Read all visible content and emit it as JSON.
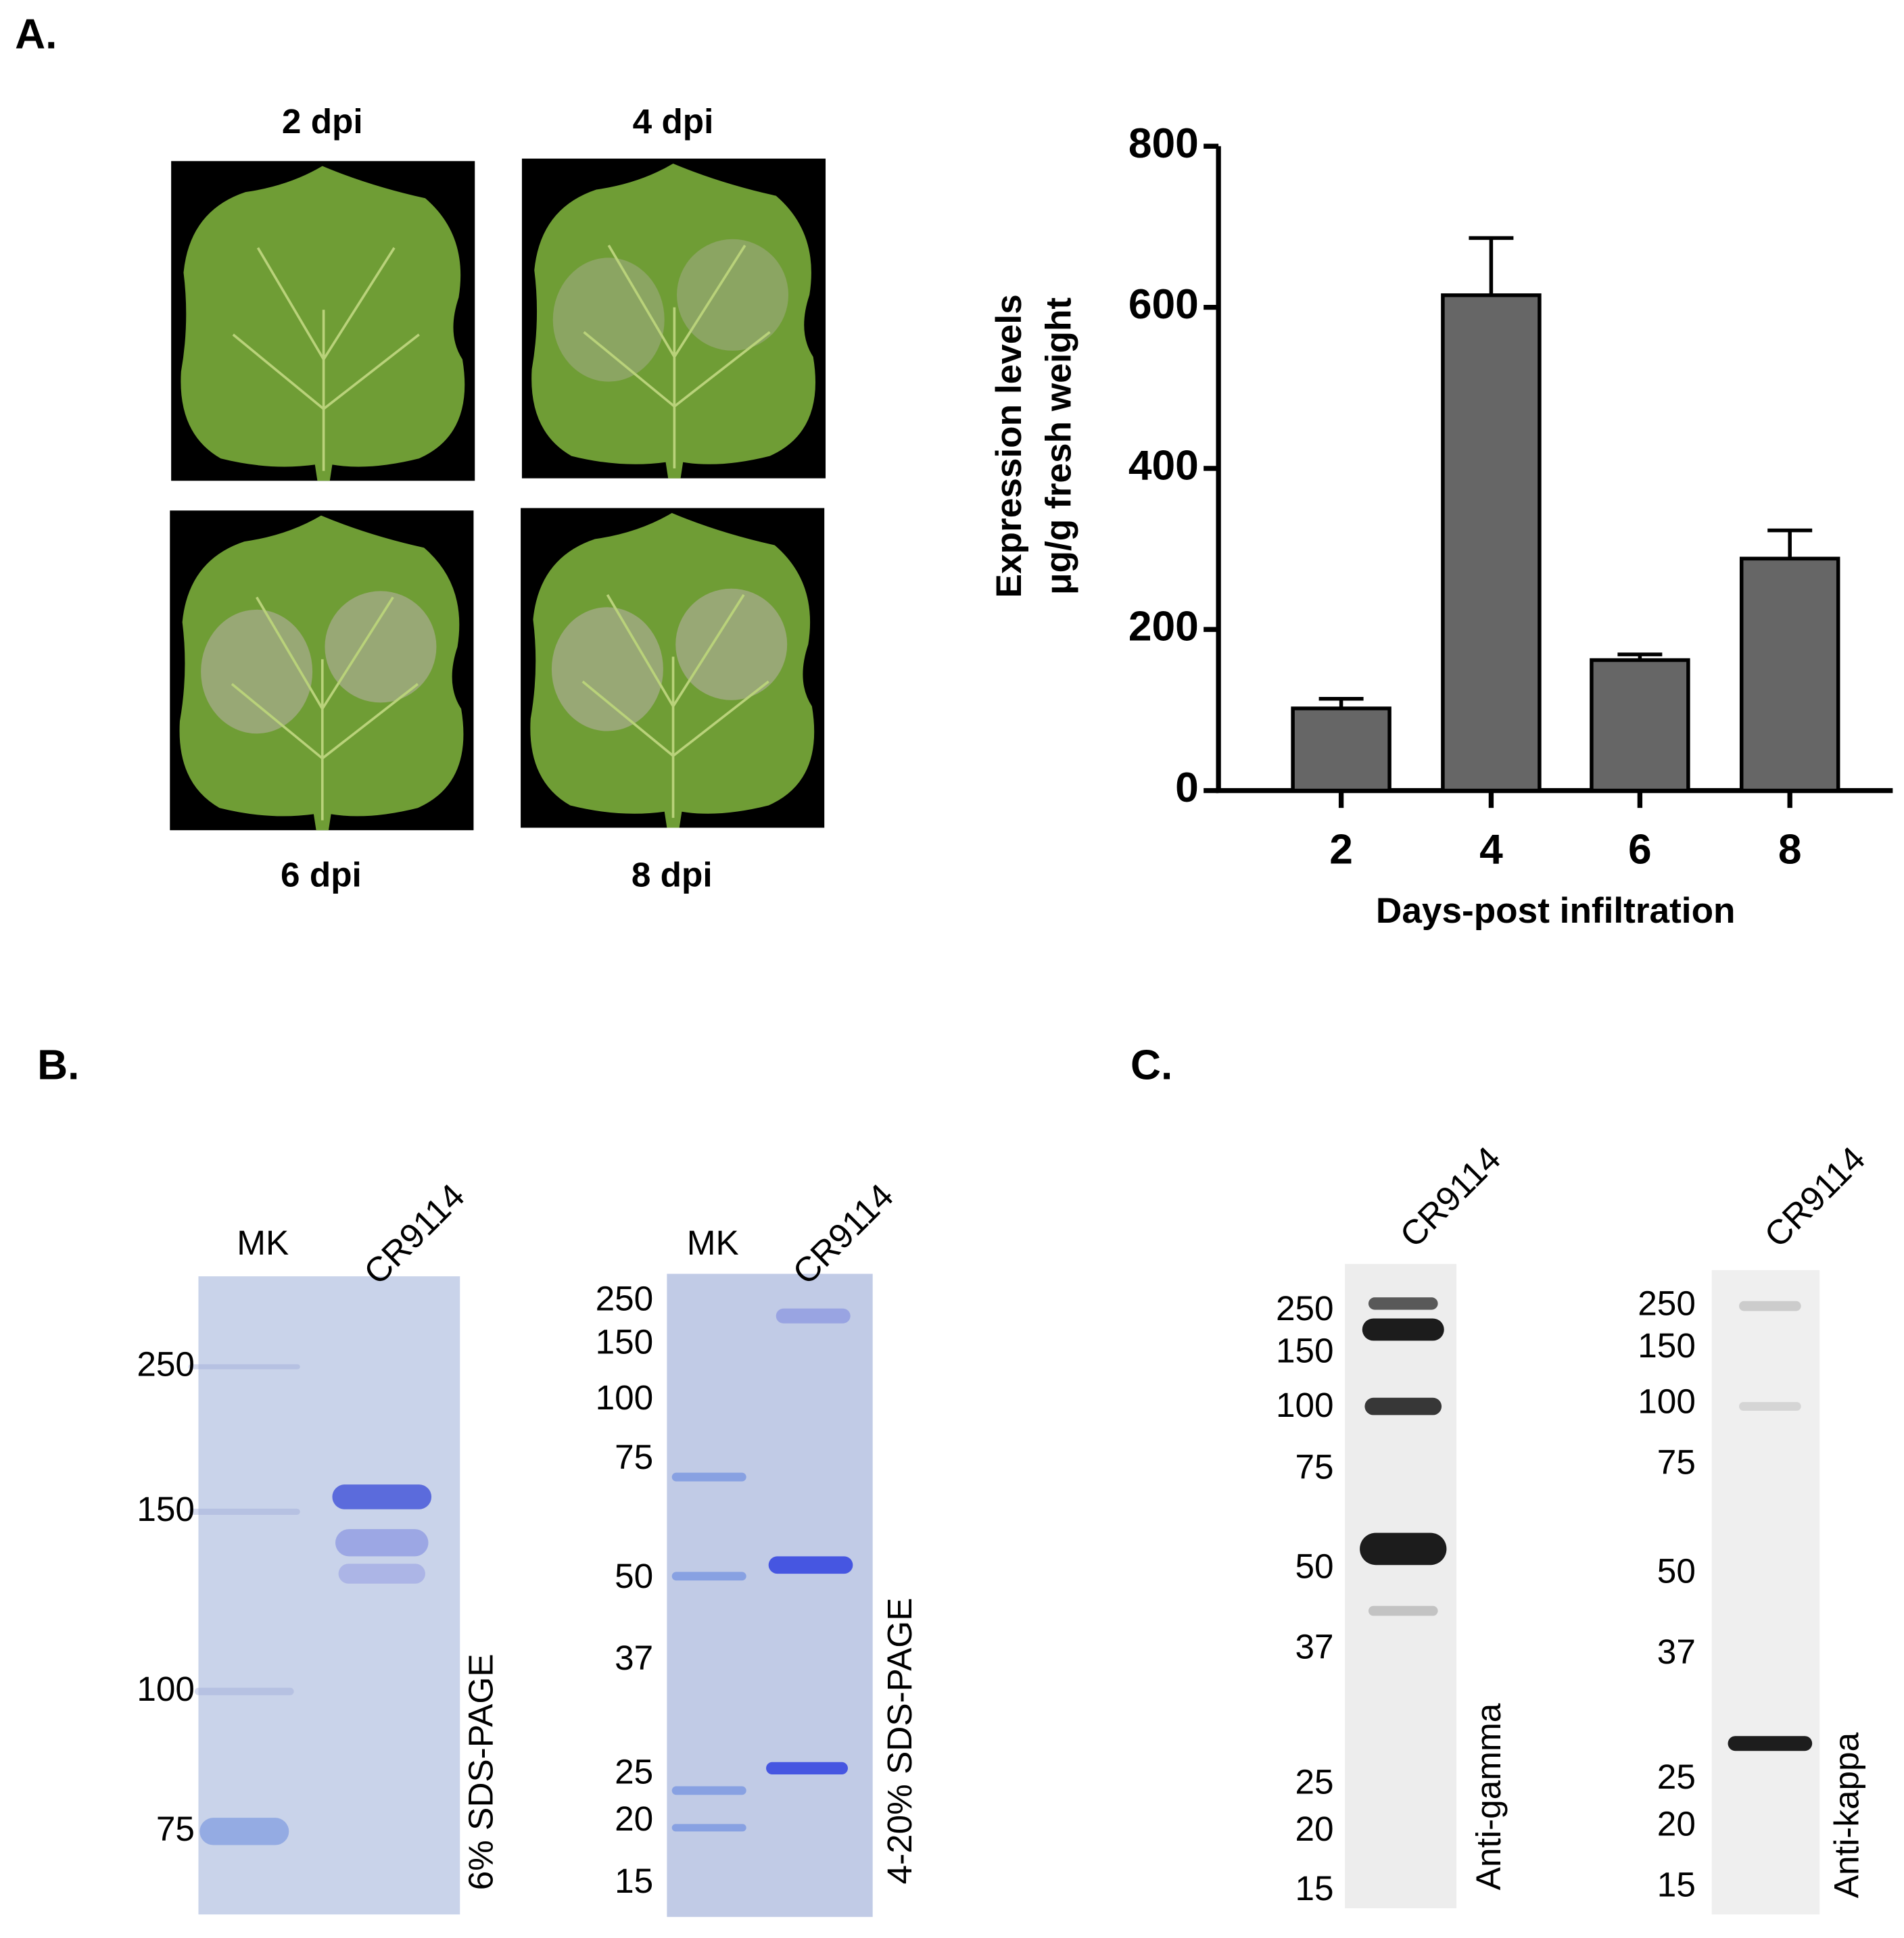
{
  "chart_data": {
    "type": "bar",
    "xlabel": "Days-post infiltration",
    "ylabel": [
      "Expression levels",
      "μg/g fresh weight"
    ],
    "categories": [
      "2",
      "4",
      "6",
      "8"
    ],
    "values": [
      102,
      615,
      162,
      288
    ],
    "errors": [
      12,
      71,
      7,
      35
    ],
    "color": "#666666",
    "ylim": [
      0,
      800
    ],
    "yticks": [
      0,
      200,
      400,
      600,
      800
    ]
  },
  "panel_labels": [
    "A.",
    "B.",
    "C."
  ],
  "leaves": [
    "2 dpi",
    "4 dpi",
    "6 dpi",
    "8 dpi"
  ],
  "gels": [
    {
      "lanes": [
        "MK",
        "CR9114"
      ],
      "caption": "6% SDS-PAGE",
      "markers": [
        "250",
        "150",
        "100",
        "75"
      ]
    },
    {
      "lanes": [
        "MK",
        "CR9114"
      ],
      "caption": "4-20% SDS-PAGE",
      "markers": [
        "250",
        "150",
        "100",
        "75",
        "50",
        "37",
        "25",
        "20",
        "15"
      ]
    },
    {
      "lanes": [
        "CR9114"
      ],
      "caption": "Anti-gamma",
      "markers": [
        "250",
        "150",
        "100",
        "75",
        "50",
        "37",
        "25",
        "20",
        "15"
      ]
    },
    {
      "lanes": [
        "CR9114"
      ],
      "caption": "Anti-kappa",
      "markers": [
        "250",
        "150",
        "100",
        "75",
        "50",
        "37",
        "25",
        "20",
        "15"
      ]
    }
  ]
}
